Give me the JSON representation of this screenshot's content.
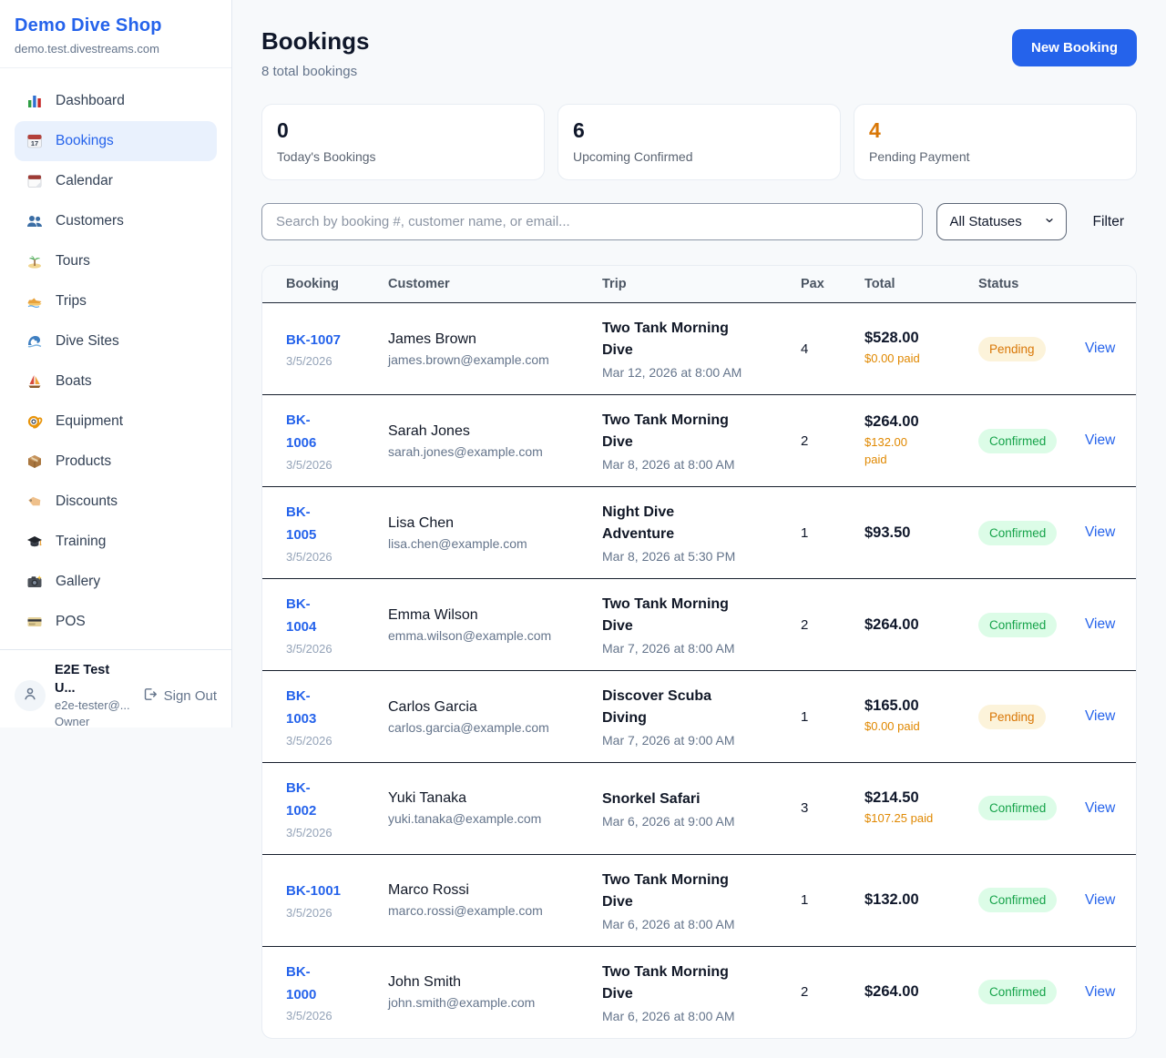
{
  "app": {
    "name": "Demo Dive Shop",
    "domain": "demo.test.divestreams.com"
  },
  "sidebar": {
    "items": [
      {
        "label": "Dashboard",
        "icon": "bar-chart-icon",
        "active": false
      },
      {
        "label": "Bookings",
        "icon": "calendar-17-icon",
        "active": true
      },
      {
        "label": "Calendar",
        "icon": "calendar-icon",
        "active": false
      },
      {
        "label": "Customers",
        "icon": "users-icon",
        "active": false
      },
      {
        "label": "Tours",
        "icon": "island-icon",
        "active": false
      },
      {
        "label": "Trips",
        "icon": "speedboat-icon",
        "active": false
      },
      {
        "label": "Dive Sites",
        "icon": "wave-icon",
        "active": false
      },
      {
        "label": "Boats",
        "icon": "sailboat-icon",
        "active": false
      },
      {
        "label": "Equipment",
        "icon": "dive-mask-icon",
        "active": false
      },
      {
        "label": "Products",
        "icon": "package-icon",
        "active": false
      },
      {
        "label": "Discounts",
        "icon": "tag-icon",
        "active": false
      },
      {
        "label": "Training",
        "icon": "grad-cap-icon",
        "active": false
      },
      {
        "label": "Gallery",
        "icon": "camera-icon",
        "active": false
      },
      {
        "label": "POS",
        "icon": "credit-card-icon",
        "active": false
      }
    ],
    "user": {
      "name": "E2E Test U...",
      "email": "e2e-tester@...",
      "role": "Owner",
      "sign_out_label": "Sign Out"
    }
  },
  "header": {
    "title": "Bookings",
    "subtitle": "8 total bookings",
    "new_booking_label": "New Booking"
  },
  "stats": [
    {
      "value": "0",
      "label": "Today's Bookings"
    },
    {
      "value": "6",
      "label": "Upcoming Confirmed"
    },
    {
      "value": "4",
      "label": "Pending Payment"
    }
  ],
  "filters": {
    "search_placeholder": "Search by booking #, customer name, or email...",
    "status_selected": "All Statuses",
    "filter_label": "Filter"
  },
  "table": {
    "columns": [
      "Booking",
      "Customer",
      "Trip",
      "Pax",
      "Total",
      "Status"
    ],
    "view_label": "View",
    "rows": [
      {
        "id": "BK-1007",
        "id_wrapped": false,
        "date": "3/5/2026",
        "customer": "James Brown",
        "email": "james.brown@example.com",
        "trip": "Two Tank Morning Dive",
        "trip_datetime": "Mar 12, 2026 at 8:00 AM",
        "pax": "4",
        "total": "$528.00",
        "paid": "$0.00 paid",
        "paid_wrapped": false,
        "status": "Pending"
      },
      {
        "id": "BK-1006",
        "id_wrapped": true,
        "date": "3/5/2026",
        "customer": "Sarah Jones",
        "email": "sarah.jones@example.com",
        "trip": "Two Tank Morning Dive",
        "trip_datetime": "Mar 8, 2026 at 8:00 AM",
        "pax": "2",
        "total": "$264.00",
        "paid": "$132.00 paid",
        "paid_wrapped": true,
        "status": "Confirmed"
      },
      {
        "id": "BK-1005",
        "id_wrapped": true,
        "date": "3/5/2026",
        "customer": "Lisa Chen",
        "email": "lisa.chen@example.com",
        "trip": "Night Dive Adventure",
        "trip_datetime": "Mar 8, 2026 at 5:30 PM",
        "pax": "1",
        "total": "$93.50",
        "paid": null,
        "paid_wrapped": false,
        "status": "Confirmed"
      },
      {
        "id": "BK-1004",
        "id_wrapped": true,
        "date": "3/5/2026",
        "customer": "Emma Wilson",
        "email": "emma.wilson@example.com",
        "trip": "Two Tank Morning Dive",
        "trip_datetime": "Mar 7, 2026 at 8:00 AM",
        "pax": "2",
        "total": "$264.00",
        "paid": null,
        "paid_wrapped": false,
        "status": "Confirmed"
      },
      {
        "id": "BK-1003",
        "id_wrapped": true,
        "date": "3/5/2026",
        "customer": "Carlos Garcia",
        "email": "carlos.garcia@example.com",
        "trip": "Discover Scuba Diving",
        "trip_datetime": "Mar 7, 2026 at 9:00 AM",
        "pax": "1",
        "total": "$165.00",
        "paid": "$0.00 paid",
        "paid_wrapped": false,
        "status": "Pending"
      },
      {
        "id": "BK-1002",
        "id_wrapped": true,
        "date": "3/5/2026",
        "customer": "Yuki Tanaka",
        "email": "yuki.tanaka@example.com",
        "trip": "Snorkel Safari",
        "trip_datetime": "Mar 6, 2026 at 9:00 AM",
        "pax": "3",
        "total": "$214.50",
        "paid": "$107.25 paid",
        "paid_wrapped": false,
        "status": "Confirmed"
      },
      {
        "id": "BK-1001",
        "id_wrapped": false,
        "date": "3/5/2026",
        "customer": "Marco Rossi",
        "email": "marco.rossi@example.com",
        "trip": "Two Tank Morning Dive",
        "trip_datetime": "Mar 6, 2026 at 8:00 AM",
        "pax": "1",
        "total": "$132.00",
        "paid": null,
        "paid_wrapped": false,
        "status": "Confirmed"
      },
      {
        "id": "BK-1000",
        "id_wrapped": true,
        "date": "3/5/2026",
        "customer": "John Smith",
        "email": "john.smith@example.com",
        "trip": "Two Tank Morning Dive",
        "trip_datetime": "Mar 6, 2026 at 8:00 AM",
        "pax": "2",
        "total": "$264.00",
        "paid": null,
        "paid_wrapped": false,
        "status": "Confirmed"
      }
    ]
  },
  "colors": {
    "accent": "#2563eb",
    "pending": "#d97706",
    "confirmed": "#16a34a",
    "paid": "#e08800"
  }
}
